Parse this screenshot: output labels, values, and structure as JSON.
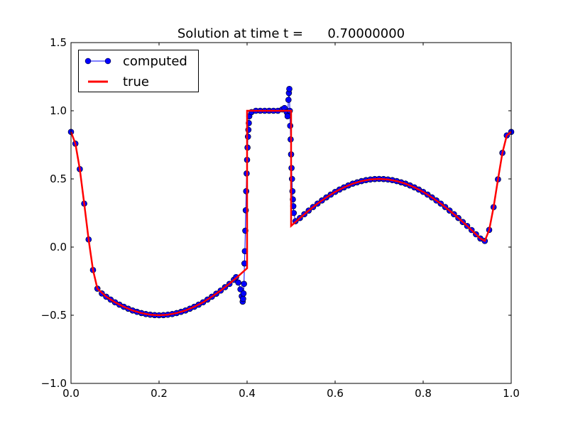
{
  "chart_data": {
    "type": "line",
    "title": "Solution at time t =      0.70000000",
    "xlabel": "",
    "ylabel": "",
    "xlim": [
      0.0,
      1.0
    ],
    "ylim": [
      -1.0,
      1.5
    ],
    "xticks": [
      "0.0",
      "0.2",
      "0.4",
      "0.6",
      "0.8",
      "1.0"
    ],
    "yticks": [
      "−1.0",
      "−0.5",
      "0.0",
      "0.5",
      "1.0",
      "1.5"
    ],
    "xtick_values": [
      0.0,
      0.2,
      0.4,
      0.6,
      0.8,
      1.0
    ],
    "ytick_values": [
      -1.0,
      -0.5,
      0.0,
      0.5,
      1.0,
      1.5
    ],
    "grid": false,
    "legend_placement": "upper-left",
    "series": [
      {
        "name": "computed",
        "color": "#0000ff",
        "marker": "circle",
        "points": [
          [
            0.0,
            0.845
          ],
          [
            0.01,
            0.759
          ],
          [
            0.02,
            0.572
          ],
          [
            0.03,
            0.319
          ],
          [
            0.04,
            0.056
          ],
          [
            0.05,
            -0.168
          ],
          [
            0.06,
            -0.305
          ],
          [
            0.07,
            -0.34
          ],
          [
            0.08,
            -0.364
          ],
          [
            0.09,
            -0.385
          ],
          [
            0.1,
            -0.405
          ],
          [
            0.11,
            -0.422
          ],
          [
            0.12,
            -0.438
          ],
          [
            0.13,
            -0.452
          ],
          [
            0.14,
            -0.465
          ],
          [
            0.15,
            -0.475
          ],
          [
            0.16,
            -0.484
          ],
          [
            0.17,
            -0.491
          ],
          [
            0.18,
            -0.496
          ],
          [
            0.19,
            -0.499
          ],
          [
            0.2,
            -0.5
          ],
          [
            0.21,
            -0.499
          ],
          [
            0.22,
            -0.496
          ],
          [
            0.23,
            -0.491
          ],
          [
            0.24,
            -0.484
          ],
          [
            0.25,
            -0.475
          ],
          [
            0.26,
            -0.465
          ],
          [
            0.27,
            -0.452
          ],
          [
            0.28,
            -0.438
          ],
          [
            0.29,
            -0.422
          ],
          [
            0.3,
            -0.405
          ],
          [
            0.31,
            -0.385
          ],
          [
            0.32,
            -0.364
          ],
          [
            0.33,
            -0.342
          ],
          [
            0.34,
            -0.319
          ],
          [
            0.35,
            -0.294
          ],
          [
            0.36,
            -0.27
          ],
          [
            0.37,
            -0.24
          ],
          [
            0.375,
            -0.22
          ],
          [
            0.38,
            -0.26
          ],
          [
            0.385,
            -0.31
          ],
          [
            0.388,
            -0.36
          ],
          [
            0.39,
            -0.4
          ],
          [
            0.391,
            -0.38
          ],
          [
            0.392,
            -0.34
          ],
          [
            0.393,
            -0.27
          ],
          [
            0.394,
            -0.12
          ],
          [
            0.395,
            -0.03
          ],
          [
            0.396,
            0.12
          ],
          [
            0.397,
            0.27
          ],
          [
            0.398,
            0.41
          ],
          [
            0.399,
            0.54
          ],
          [
            0.4,
            0.64
          ],
          [
            0.401,
            0.73
          ],
          [
            0.402,
            0.81
          ],
          [
            0.403,
            0.86
          ],
          [
            0.404,
            0.91
          ],
          [
            0.405,
            0.96
          ],
          [
            0.41,
            0.99
          ],
          [
            0.42,
            1.0
          ],
          [
            0.43,
            1.0
          ],
          [
            0.44,
            1.0
          ],
          [
            0.45,
            1.0
          ],
          [
            0.46,
            1.0
          ],
          [
            0.47,
            1.0
          ],
          [
            0.48,
            1.01
          ],
          [
            0.485,
            1.02
          ],
          [
            0.49,
            0.99
          ],
          [
            0.492,
            0.96
          ],
          [
            0.494,
            1.08
          ],
          [
            0.495,
            1.13
          ],
          [
            0.496,
            1.16
          ],
          [
            0.497,
            1.0
          ],
          [
            0.498,
            0.89
          ],
          [
            0.499,
            0.79
          ],
          [
            0.5,
            0.68
          ],
          [
            0.501,
            0.58
          ],
          [
            0.502,
            0.5
          ],
          [
            0.503,
            0.41
          ],
          [
            0.504,
            0.35
          ],
          [
            0.505,
            0.3
          ],
          [
            0.506,
            0.25
          ],
          [
            0.51,
            0.19
          ],
          [
            0.52,
            0.213
          ],
          [
            0.53,
            0.241
          ],
          [
            0.54,
            0.268
          ],
          [
            0.55,
            0.294
          ],
          [
            0.56,
            0.319
          ],
          [
            0.57,
            0.342
          ],
          [
            0.58,
            0.364
          ],
          [
            0.59,
            0.385
          ],
          [
            0.6,
            0.405
          ],
          [
            0.61,
            0.422
          ],
          [
            0.62,
            0.438
          ],
          [
            0.63,
            0.452
          ],
          [
            0.64,
            0.465
          ],
          [
            0.65,
            0.475
          ],
          [
            0.66,
            0.484
          ],
          [
            0.67,
            0.491
          ],
          [
            0.68,
            0.496
          ],
          [
            0.69,
            0.499
          ],
          [
            0.7,
            0.5
          ],
          [
            0.71,
            0.499
          ],
          [
            0.72,
            0.496
          ],
          [
            0.73,
            0.491
          ],
          [
            0.74,
            0.484
          ],
          [
            0.75,
            0.475
          ],
          [
            0.76,
            0.465
          ],
          [
            0.77,
            0.452
          ],
          [
            0.78,
            0.438
          ],
          [
            0.79,
            0.422
          ],
          [
            0.8,
            0.405
          ],
          [
            0.81,
            0.385
          ],
          [
            0.82,
            0.364
          ],
          [
            0.83,
            0.342
          ],
          [
            0.84,
            0.319
          ],
          [
            0.85,
            0.294
          ],
          [
            0.86,
            0.268
          ],
          [
            0.87,
            0.241
          ],
          [
            0.88,
            0.213
          ],
          [
            0.89,
            0.184
          ],
          [
            0.9,
            0.155
          ],
          [
            0.91,
            0.125
          ],
          [
            0.92,
            0.094
          ],
          [
            0.93,
            0.063
          ],
          [
            0.94,
            0.045
          ],
          [
            0.95,
            0.126
          ],
          [
            0.96,
            0.293
          ],
          [
            0.97,
            0.497
          ],
          [
            0.98,
            0.691
          ],
          [
            0.99,
            0.819
          ],
          [
            1.0,
            0.845
          ]
        ]
      },
      {
        "name": "true",
        "color": "#ff0000",
        "points": [
          [
            0.0,
            0.845
          ],
          [
            0.01,
            0.759
          ],
          [
            0.02,
            0.572
          ],
          [
            0.03,
            0.319
          ],
          [
            0.04,
            0.056
          ],
          [
            0.05,
            -0.168
          ],
          [
            0.06,
            -0.305
          ],
          [
            0.08,
            -0.364
          ],
          [
            0.1,
            -0.405
          ],
          [
            0.12,
            -0.438
          ],
          [
            0.14,
            -0.465
          ],
          [
            0.16,
            -0.484
          ],
          [
            0.18,
            -0.496
          ],
          [
            0.2,
            -0.5
          ],
          [
            0.22,
            -0.496
          ],
          [
            0.24,
            -0.484
          ],
          [
            0.26,
            -0.465
          ],
          [
            0.28,
            -0.438
          ],
          [
            0.3,
            -0.405
          ],
          [
            0.32,
            -0.364
          ],
          [
            0.34,
            -0.319
          ],
          [
            0.36,
            -0.268
          ],
          [
            0.38,
            -0.213
          ],
          [
            0.4,
            -0.155
          ],
          [
            0.4,
            1.0
          ],
          [
            0.5,
            1.0
          ],
          [
            0.5,
            0.155
          ],
          [
            0.52,
            0.213
          ],
          [
            0.54,
            0.268
          ],
          [
            0.56,
            0.319
          ],
          [
            0.58,
            0.364
          ],
          [
            0.6,
            0.405
          ],
          [
            0.62,
            0.438
          ],
          [
            0.64,
            0.465
          ],
          [
            0.66,
            0.484
          ],
          [
            0.68,
            0.496
          ],
          [
            0.7,
            0.5
          ],
          [
            0.72,
            0.496
          ],
          [
            0.74,
            0.484
          ],
          [
            0.76,
            0.465
          ],
          [
            0.78,
            0.438
          ],
          [
            0.8,
            0.405
          ],
          [
            0.82,
            0.364
          ],
          [
            0.84,
            0.319
          ],
          [
            0.86,
            0.268
          ],
          [
            0.88,
            0.213
          ],
          [
            0.9,
            0.155
          ],
          [
            0.92,
            0.094
          ],
          [
            0.93,
            0.063
          ],
          [
            0.94,
            0.045
          ],
          [
            0.95,
            0.126
          ],
          [
            0.96,
            0.293
          ],
          [
            0.97,
            0.497
          ],
          [
            0.98,
            0.691
          ],
          [
            0.99,
            0.819
          ],
          [
            1.0,
            0.845
          ]
        ]
      }
    ]
  }
}
